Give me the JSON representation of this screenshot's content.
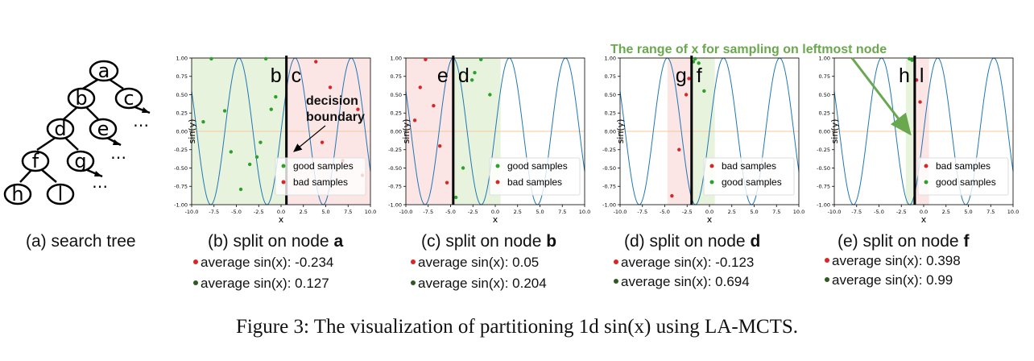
{
  "tree": {
    "nodes": [
      "a",
      "b",
      "c",
      "d",
      "e",
      "f",
      "g",
      "h",
      "l"
    ],
    "ellipsis": "⋯",
    "caption": "(a) search tree"
  },
  "annotations": {
    "decision_boundary_line1": "decision",
    "decision_boundary_line2": "boundary",
    "range_note": "The range of x for sampling on leftmost node"
  },
  "figure_caption": "Figure 3: The visualization of partitioning 1d sin(x) using LA-MCTS.",
  "colors": {
    "good": "#2ca02c",
    "bad": "#d62728",
    "curve": "#1f77b4",
    "good_region": "#e8f3dd",
    "bad_region": "#fbe5e5",
    "ref_line": "#f5c89a",
    "annotation_green": "#6aa84f"
  },
  "chart_data": [
    {
      "type": "line",
      "panel": "b",
      "caption_prefix": "(b) split on node ",
      "caption_node": "a",
      "ylabel": "sin(y)",
      "xlabel": "x",
      "xlim": [
        -10,
        10
      ],
      "ylim": [
        -1,
        1
      ],
      "xticks": [
        "-10.0",
        "-7.5",
        "-5.0",
        "-2.5",
        "0.0",
        "2.5",
        "5.0",
        "7.5",
        "10.0"
      ],
      "yticks": [
        "1.00",
        "0.75",
        "0.50",
        "0.25",
        "0.00",
        "-0.25",
        "-0.50",
        "-0.75",
        "-1.00"
      ],
      "boundary_x": 0.6,
      "regions": [
        {
          "from": -10,
          "to": 0.6,
          "kind": "good",
          "label": "b"
        },
        {
          "from": 0.6,
          "to": 10,
          "kind": "bad",
          "label": "c"
        }
      ],
      "legend": [
        {
          "kind": "good",
          "label": "good samples"
        },
        {
          "kind": "bad",
          "label": "bad samples"
        }
      ],
      "good_points": [
        [
          -8.7,
          0.13
        ],
        [
          -7.8,
          0.99
        ],
        [
          -6.3,
          0.28
        ],
        [
          -5.6,
          -0.28
        ],
        [
          -4.5,
          -0.79
        ],
        [
          -3.5,
          -0.45
        ],
        [
          -2.7,
          -0.35
        ],
        [
          -2.3,
          -0.15
        ],
        [
          -1.7,
          0.99
        ],
        [
          -0.6,
          0.47
        ],
        [
          -1.1,
          0.3
        ]
      ],
      "bad_points": [
        [
          3.9,
          0.95
        ],
        [
          5.5,
          0.6
        ],
        [
          6.9,
          -0.4
        ],
        [
          8.6,
          0.3
        ],
        [
          9.1,
          -0.6
        ],
        [
          4.6,
          -0.15
        ]
      ],
      "stats": [
        {
          "kind": "bad",
          "label": "average sin(x): -0.234"
        },
        {
          "kind": "good",
          "label": "average sin(x):  0.127"
        }
      ]
    },
    {
      "type": "line",
      "panel": "c",
      "caption_prefix": "(c) split on node ",
      "caption_node": "b",
      "ylabel": "sin(y)",
      "xlabel": "x",
      "xlim": [
        -10,
        10
      ],
      "ylim": [
        -1,
        1
      ],
      "xticks": [
        "-10.0",
        "-7.5",
        "-5.0",
        "-2.5",
        "0.0",
        "2.5",
        "5.0",
        "7.5",
        "10.0"
      ],
      "yticks": [
        "1.00",
        "0.75",
        "0.50",
        "0.25",
        "0.00",
        "-0.25",
        "-0.50",
        "-0.75",
        "-1.00"
      ],
      "boundary_x": -4.7,
      "regions": [
        {
          "from": -10,
          "to": -4.7,
          "kind": "bad",
          "label": "e"
        },
        {
          "from": -4.7,
          "to": 0.6,
          "kind": "good",
          "label": "d"
        }
      ],
      "legend": [
        {
          "kind": "good",
          "label": "good samples"
        },
        {
          "kind": "bad",
          "label": "bad samples"
        }
      ],
      "good_points": [
        [
          -4.4,
          -0.9
        ],
        [
          -3.6,
          -0.5
        ],
        [
          -2.6,
          0.7
        ],
        [
          -2.3,
          0.8
        ],
        [
          -1.6,
          0.98
        ],
        [
          -0.6,
          0.5
        ]
      ],
      "bad_points": [
        [
          -9.0,
          0.15
        ],
        [
          -8.4,
          0.6
        ],
        [
          -7.8,
          0.98
        ],
        [
          -6.9,
          0.35
        ],
        [
          -6.2,
          -0.2
        ],
        [
          -5.4,
          -0.7
        ]
      ],
      "stats": [
        {
          "kind": "bad",
          "label": "average sin(x): 0.05"
        },
        {
          "kind": "good",
          "label": "average sin(x): 0.204"
        }
      ]
    },
    {
      "type": "line",
      "panel": "d",
      "caption_prefix": "(d) split on node ",
      "caption_node": "d",
      "ylabel": "sin(y)",
      "xlabel": "x",
      "xlim": [
        -10,
        10
      ],
      "ylim": [
        -1,
        1
      ],
      "xticks": [
        "-10.0",
        "-7.5",
        "-5.0",
        "-2.5",
        "0.0",
        "2.5",
        "5.0",
        "7.5",
        "10.0"
      ],
      "yticks": [
        "1.00",
        "0.75",
        "0.50",
        "0.25",
        "0.00",
        "-0.25",
        "-0.50",
        "-0.75",
        "-1.00"
      ],
      "boundary_x": -2.0,
      "regions": [
        {
          "from": -4.7,
          "to": -2.0,
          "kind": "bad",
          "label": "g"
        },
        {
          "from": -2.0,
          "to": 0.6,
          "kind": "good",
          "label": "f"
        }
      ],
      "legend": [
        {
          "kind": "bad",
          "label": "bad samples"
        },
        {
          "kind": "good",
          "label": "good samples"
        }
      ],
      "good_points": [
        [
          -1.6,
          0.99
        ],
        [
          -1.2,
          0.93
        ],
        [
          -0.6,
          0.55
        ],
        [
          -1.8,
          0.95
        ]
      ],
      "bad_points": [
        [
          -4.2,
          -0.88
        ],
        [
          -3.4,
          -0.25
        ],
        [
          -2.6,
          0.5
        ],
        [
          -2.3,
          0.72
        ]
      ],
      "stats": [
        {
          "kind": "bad",
          "label": "average sin(x): -0.123"
        },
        {
          "kind": "good",
          "label": "average sin(x):  0.694"
        }
      ]
    },
    {
      "type": "line",
      "panel": "e",
      "caption_prefix": "(e) split on node ",
      "caption_node": "f",
      "ylabel": "sin(y)",
      "xlabel": "x",
      "xlim": [
        -10,
        10
      ],
      "ylim": [
        -1,
        1
      ],
      "xticks": [
        "-10.0",
        "-7.5",
        "-5.0",
        "-2.5",
        "0.0",
        "2.5",
        "5.0",
        "7.5",
        "10.0"
      ],
      "yticks": [
        "1.00",
        "0.75",
        "0.50",
        "0.25",
        "0.00",
        "-0.25",
        "-0.50",
        "-0.75",
        "-1.00"
      ],
      "boundary_x": -1.0,
      "regions": [
        {
          "from": -2.0,
          "to": -1.0,
          "kind": "good",
          "label": "h"
        },
        {
          "from": -1.0,
          "to": 0.6,
          "kind": "bad",
          "label": "l"
        }
      ],
      "legend": [
        {
          "kind": "bad",
          "label": "bad samples"
        },
        {
          "kind": "good",
          "label": "good samples"
        }
      ],
      "good_points": [
        [
          -1.6,
          0.99
        ],
        [
          -1.3,
          0.97
        ]
      ],
      "bad_points": [
        [
          -0.4,
          0.4
        ],
        [
          -0.8,
          0.7
        ]
      ],
      "stats": [
        {
          "kind": "bad",
          "label": "average sin(x): 0.398"
        },
        {
          "kind": "good",
          "label": "average sin(x):  0.99"
        }
      ]
    }
  ]
}
